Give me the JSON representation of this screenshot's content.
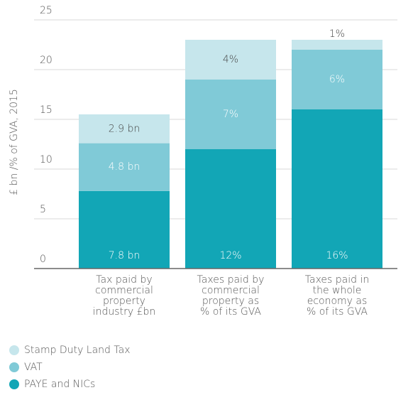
{
  "chart_data": {
    "type": "stacked_bar",
    "y_label": "£ bn /% of GVA, 2015",
    "categories": [
      [
        "Tax paid by",
        "commercial",
        "property",
        "industry £bn"
      ],
      [
        "Taxes paid by",
        "commercial",
        "property as",
        "% of its GVA"
      ],
      [
        "Taxes paid in",
        "the whole",
        "economy as",
        "% of its GVA"
      ]
    ],
    "series": [
      {
        "name": "PAYE and NICs",
        "color": "#12a6b6",
        "values": [
          7.8,
          12,
          16
        ],
        "value_labels": [
          "7.8 bn",
          "12%",
          "16%"
        ]
      },
      {
        "name": "VAT",
        "color": "#80cad7",
        "values": [
          4.8,
          7,
          6
        ],
        "value_labels": [
          "4.8 bn",
          "7%",
          "6%"
        ]
      },
      {
        "name": "Stamp Duty Land Tax",
        "color": "#c6e6ec",
        "values": [
          2.9,
          4,
          1
        ],
        "value_labels": [
          "2.9 bn",
          "4%",
          "1%"
        ]
      }
    ],
    "ylim": [
      0,
      25
    ],
    "yticks": [
      0,
      5,
      10,
      15,
      20,
      25
    ],
    "grid": true
  }
}
